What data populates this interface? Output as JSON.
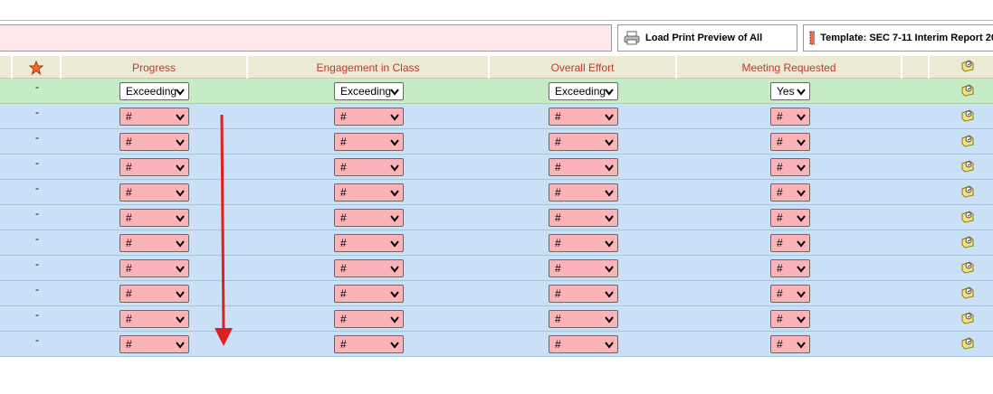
{
  "toolbar": {
    "print_button": "Load Print Preview of All",
    "template_button": "Template: SEC 7-11 Interim Report 20"
  },
  "table": {
    "columns": [
      "Progress",
      "Engagement in Class",
      "Overall Effort",
      "Meeting Requested"
    ],
    "rows": [
      {
        "marker": "-",
        "cells": [
          "Exceeding",
          "Exceeding",
          "Exceeding",
          "Yes"
        ]
      },
      {
        "marker": "-",
        "cells": [
          "#",
          "#",
          "#",
          "#"
        ]
      },
      {
        "marker": "-",
        "cells": [
          "#",
          "#",
          "#",
          "#"
        ]
      },
      {
        "marker": "-",
        "cells": [
          "#",
          "#",
          "#",
          "#"
        ]
      },
      {
        "marker": "-",
        "cells": [
          "#",
          "#",
          "#",
          "#"
        ]
      },
      {
        "marker": "-",
        "cells": [
          "#",
          "#",
          "#",
          "#"
        ]
      },
      {
        "marker": "-",
        "cells": [
          "#",
          "#",
          "#",
          "#"
        ]
      },
      {
        "marker": "-",
        "cells": [
          "#",
          "#",
          "#",
          "#"
        ]
      },
      {
        "marker": "-",
        "cells": [
          "#",
          "#",
          "#",
          "#"
        ]
      },
      {
        "marker": "-",
        "cells": [
          "#",
          "#",
          "#",
          "#"
        ]
      },
      {
        "marker": "-",
        "cells": [
          "#",
          "#",
          "#",
          "#"
        ]
      }
    ]
  }
}
